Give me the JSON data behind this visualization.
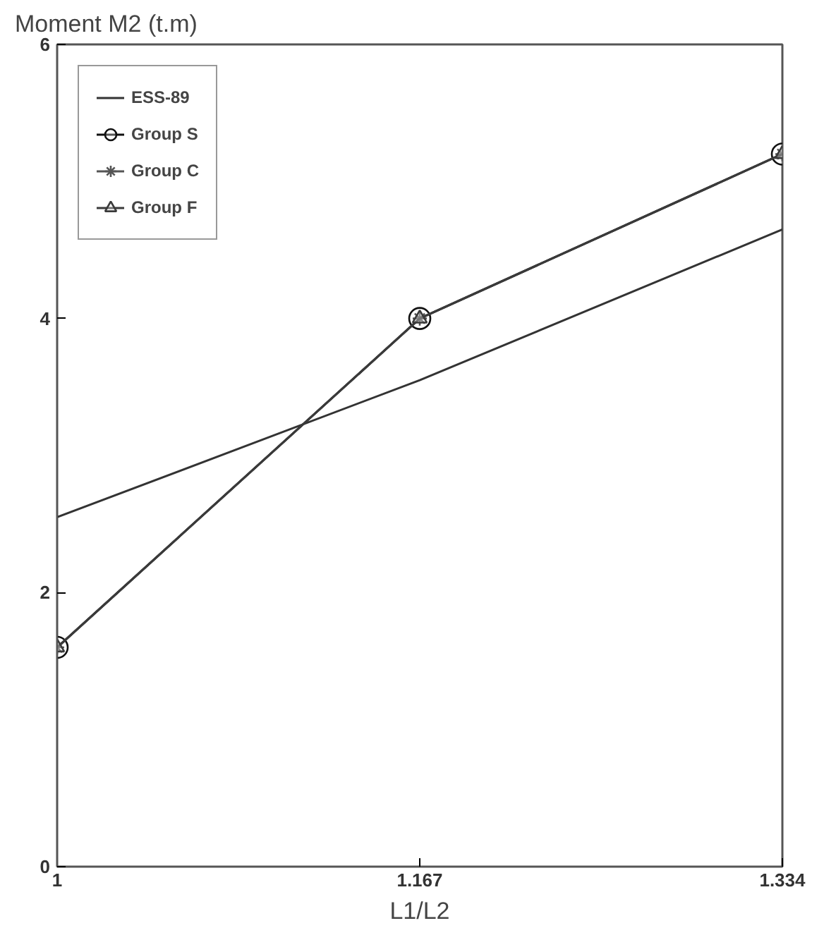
{
  "chart_data": {
    "type": "line",
    "ylabel": "Moment M2 (t.m)",
    "xlabel": "L1/L2",
    "x": [
      1,
      1.167,
      1.334
    ],
    "xlim": [
      1,
      1.334
    ],
    "xticks": [
      1,
      1.167,
      1.334
    ],
    "ylim": [
      0,
      6
    ],
    "yticks": [
      0,
      2,
      4,
      6
    ],
    "grid": false,
    "legend": "top left",
    "series": [
      {
        "name": "ESS-89",
        "color": "#333333",
        "values": [
          2.55,
          3.55,
          4.65
        ],
        "marker": "none"
      },
      {
        "name": "Group S",
        "color": "#111111",
        "values": [
          1.6,
          4.0,
          5.2
        ],
        "marker": "circle"
      },
      {
        "name": "Group C",
        "color": "#555555",
        "values": [
          1.6,
          4.0,
          5.2
        ],
        "marker": "cross"
      },
      {
        "name": "Group F",
        "color": "#3a3a3a",
        "values": [
          1.6,
          4.0,
          5.2
        ],
        "marker": "triangle"
      }
    ]
  }
}
